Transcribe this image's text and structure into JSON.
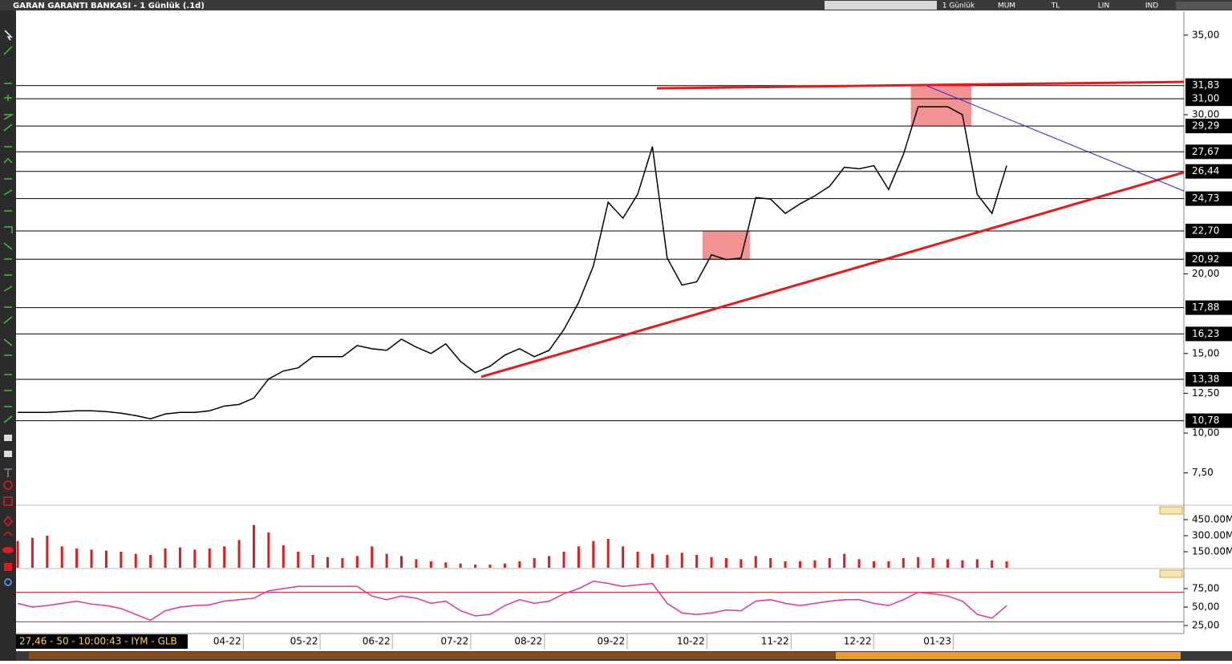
{
  "header": {
    "title": "GARAN GARANTI BANKASI - 1 Günlük (.1d)",
    "period": "1 Günlük",
    "style": "MUM",
    "currency": "TL",
    "scale": "LIN",
    "indicator": "IND"
  },
  "status": "27,46 - 50 - 10:00:43 - IYM - GLB",
  "chart_data": [
    {
      "type": "line",
      "color": "#000000",
      "x": [
        0,
        1,
        2,
        3,
        4,
        5,
        6,
        7,
        8,
        9,
        10,
        11,
        12,
        13,
        14,
        15,
        16,
        17,
        18,
        19,
        20,
        21,
        22,
        23,
        24,
        25,
        26,
        27,
        28,
        29,
        30,
        31,
        32,
        33,
        34,
        35,
        36,
        37,
        38,
        39,
        40,
        41,
        42,
        43,
        44,
        45,
        46,
        47,
        48,
        49,
        50,
        51,
        52,
        53,
        54,
        55,
        56,
        57,
        58,
        59,
        60,
        61,
        62,
        63,
        64,
        65,
        66,
        67
      ],
      "values": [
        11.3,
        11.3,
        11.3,
        11.35,
        11.4,
        11.4,
        11.35,
        11.25,
        11.1,
        10.9,
        11.2,
        11.3,
        11.3,
        11.4,
        11.7,
        11.8,
        12.2,
        13.4,
        13.9,
        14.1,
        14.8,
        14.8,
        14.8,
        15.5,
        15.3,
        15.2,
        15.9,
        15.4,
        15.0,
        15.6,
        14.5,
        13.8,
        14.2,
        14.9,
        15.3,
        14.8,
        15.2,
        16.5,
        18.2,
        20.5,
        24.5,
        23.5,
        25.0,
        28.0,
        21.0,
        19.3,
        19.5,
        21.2,
        20.9,
        21.0,
        24.8,
        24.7,
        23.8,
        24.4,
        24.9,
        25.5,
        26.7,
        26.6,
        26.8,
        25.3,
        27.5,
        30.5,
        30.5,
        30.5,
        30.0,
        25.0,
        23.8,
        26.8
      ],
      "xlim": [
        0,
        79
      ],
      "ylim": [
        5.47,
        36.5
      ],
      "xticks": [
        {
          "value": 14.2,
          "label": "04-22"
        },
        {
          "value": 19.4,
          "label": "05-22"
        },
        {
          "value": 24.3,
          "label": "06-22"
        },
        {
          "value": 29.6,
          "label": "07-22"
        },
        {
          "value": 34.6,
          "label": "08-22"
        },
        {
          "value": 40.2,
          "label": "09-22"
        },
        {
          "value": 45.6,
          "label": "10-22"
        },
        {
          "value": 51.3,
          "label": "11-22"
        },
        {
          "value": 56.9,
          "label": "12-22"
        },
        {
          "value": 62.3,
          "label": "01-23"
        }
      ],
      "yticks": [
        {
          "value": 35,
          "label": "35,00"
        },
        {
          "value": 30,
          "label": "30,00"
        },
        {
          "value": 20,
          "label": "20,00"
        },
        {
          "value": 15,
          "label": "15,00"
        },
        {
          "value": 12.5,
          "label": "12,50"
        },
        {
          "value": 10,
          "label": "10,00"
        },
        {
          "value": 7.5,
          "label": "7,50"
        }
      ],
      "levels": [
        {
          "value": 31.83,
          "label": "31,83"
        },
        {
          "value": 31,
          "label": "31,00"
        },
        {
          "value": 29.29,
          "label": "29,29"
        },
        {
          "value": 27.67,
          "label": "27,67"
        },
        {
          "value": 26.44,
          "label": "26,44"
        },
        {
          "value": 24.73,
          "label": "24,73"
        },
        {
          "value": 22.7,
          "label": "22,70"
        },
        {
          "value": 20.92,
          "label": "20,92"
        },
        {
          "value": 17.88,
          "label": "17,88"
        },
        {
          "value": 16.23,
          "label": "16,23"
        },
        {
          "value": 13.38,
          "label": "13,38"
        },
        {
          "value": 10.78,
          "label": "10,78"
        }
      ],
      "trendlines": [
        {
          "color": "#e8191b",
          "from": [
            31.4,
            13.53
          ],
          "to": [
            79,
            26.38
          ]
        },
        {
          "color": "#e8191b",
          "from": [
            43.3,
            31.66
          ],
          "to": [
            79,
            32.06
          ]
        },
        {
          "color": "#2a2ad6",
          "from": [
            61.6,
            31.81
          ],
          "to": [
            79,
            25.21
          ]
        }
      ],
      "boxes": [
        {
          "color": "#f08080",
          "x": [
            46.4,
            49.6
          ],
          "y": [
            20.88,
            22.7
          ]
        },
        {
          "color": "#f08080",
          "x": [
            60.5,
            64.6
          ],
          "y": [
            29.3,
            31.9
          ]
        }
      ]
    },
    {
      "type": "bar",
      "color": "#e8191b",
      "x": [
        0,
        1,
        2,
        3,
        4,
        5,
        6,
        7,
        8,
        9,
        10,
        11,
        12,
        13,
        14,
        15,
        16,
        17,
        18,
        19,
        20,
        21,
        22,
        23,
        24,
        25,
        26,
        27,
        28,
        29,
        30,
        31,
        32,
        33,
        34,
        35,
        36,
        37,
        38,
        39,
        40,
        41,
        42,
        43,
        44,
        45,
        46,
        47,
        48,
        49,
        50,
        51,
        52,
        53,
        54,
        55,
        56,
        57,
        58,
        59,
        60,
        61,
        62,
        63,
        64,
        65,
        66,
        67
      ],
      "values": [
        250000000,
        280000000,
        300000000,
        200000000,
        180000000,
        170000000,
        160000000,
        150000000,
        130000000,
        120000000,
        180000000,
        190000000,
        170000000,
        180000000,
        200000000,
        260000000,
        400000000,
        330000000,
        210000000,
        150000000,
        120000000,
        100000000,
        90000000,
        110000000,
        200000000,
        130000000,
        110000000,
        80000000,
        60000000,
        50000000,
        40000000,
        30000000,
        30000000,
        40000000,
        60000000,
        90000000,
        110000000,
        150000000,
        200000000,
        250000000,
        270000000,
        200000000,
        150000000,
        130000000,
        120000000,
        140000000,
        120000000,
        100000000,
        90000000,
        80000000,
        110000000,
        90000000,
        60000000,
        60000000,
        70000000,
        90000000,
        130000000,
        80000000,
        60000000,
        60000000,
        90000000,
        100000000,
        90000000,
        80000000,
        70000000,
        80000000,
        70000000,
        60000000
      ],
      "xlim": [
        0,
        79
      ],
      "ylim": [
        0,
        585000000
      ],
      "yticks": [
        {
          "value": 450000000,
          "label": "450.00M"
        },
        {
          "value": 300000000,
          "label": "300.00M"
        },
        {
          "value": 150000000,
          "label": "150.00M"
        }
      ]
    },
    {
      "type": "line",
      "color": "#e0359a",
      "x": [
        0,
        1,
        2,
        3,
        4,
        5,
        6,
        7,
        8,
        9,
        10,
        11,
        12,
        13,
        14,
        15,
        16,
        17,
        18,
        19,
        20,
        21,
        22,
        23,
        24,
        25,
        26,
        27,
        28,
        29,
        30,
        31,
        32,
        33,
        34,
        35,
        36,
        37,
        38,
        39,
        40,
        41,
        42,
        43,
        44,
        45,
        46,
        47,
        48,
        49,
        50,
        51,
        52,
        53,
        54,
        55,
        56,
        57,
        58,
        59,
        60,
        61,
        62,
        63,
        64,
        65,
        66,
        67
      ],
      "values": [
        55,
        50,
        52,
        55,
        58,
        54,
        52,
        48,
        40,
        32,
        45,
        50,
        52,
        53,
        58,
        60,
        62,
        72,
        75,
        78,
        78,
        78,
        78,
        78,
        65,
        60,
        65,
        62,
        55,
        58,
        45,
        38,
        40,
        52,
        60,
        55,
        58,
        68,
        75,
        85,
        82,
        78,
        80,
        82,
        55,
        42,
        40,
        42,
        46,
        45,
        58,
        60,
        55,
        52,
        55,
        58,
        60,
        60,
        55,
        52,
        60,
        70,
        68,
        65,
        58,
        40,
        35,
        52
      ],
      "xlim": [
        0,
        79
      ],
      "ylim": [
        14.1,
        101.1
      ],
      "yticks": [
        {
          "value": 75,
          "label": "75,00"
        },
        {
          "value": 50,
          "label": "50,00"
        },
        {
          "value": 25,
          "label": "25,00"
        }
      ],
      "levels": [
        70,
        30
      ],
      "level_color": "#e8191b"
    }
  ]
}
